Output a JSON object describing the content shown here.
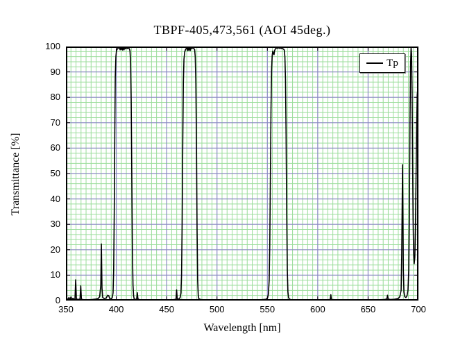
{
  "title": "TBPF-405,473,561  (AOI 45deg.)",
  "legend": {
    "label": "Tp",
    "line_color": "#000000",
    "position": "top-right"
  },
  "axes": {
    "x": {
      "label": "Wavelength [nm]",
      "min": 350,
      "max": 700,
      "major_step": 50,
      "minor_step": 5,
      "ticks": [
        350,
        400,
        450,
        500,
        550,
        600,
        650,
        700
      ]
    },
    "y": {
      "label": "Transmittance [%]",
      "min": 0,
      "max": 100,
      "major_step": 10,
      "minor_step": 2,
      "ticks": [
        100,
        90,
        80,
        70,
        60,
        50,
        40,
        30,
        20,
        10,
        0
      ]
    }
  },
  "colors": {
    "curve": "#000000",
    "grid_minor": "#9bdd9b",
    "grid_major": "#8a8ac2",
    "border": "#000000",
    "background": "#ffffff"
  },
  "chart_data": {
    "type": "line",
    "title": "TBPF-405,473,561  (AOI 45deg.)",
    "xlabel": "Wavelength [nm]",
    "ylabel": "Transmittance [%]",
    "xlim": [
      350,
      700
    ],
    "ylim": [
      0,
      100
    ],
    "grid": "major+minor",
    "legend_position": "top-right",
    "series": [
      {
        "name": "Tp",
        "color": "#000000",
        "points": [
          [
            350,
            0.4
          ],
          [
            351,
            0.8
          ],
          [
            352,
            0.4
          ],
          [
            353,
            1.2
          ],
          [
            354,
            0.4
          ],
          [
            355,
            1.4
          ],
          [
            356,
            0.5
          ],
          [
            357,
            0.9
          ],
          [
            358,
            0.5
          ],
          [
            359,
            0.6
          ],
          [
            359.7,
            8.2
          ],
          [
            360.4,
            0.7
          ],
          [
            362,
            0.4
          ],
          [
            364,
            0.6
          ],
          [
            364.7,
            5.8
          ],
          [
            365.4,
            0.5
          ],
          [
            368,
            0.3
          ],
          [
            372,
            0.3
          ],
          [
            376,
            0.4
          ],
          [
            380,
            0.6
          ],
          [
            382,
            0.8
          ],
          [
            383.5,
            1.5
          ],
          [
            384.6,
            6
          ],
          [
            385.2,
            22.3
          ],
          [
            385.8,
            5
          ],
          [
            386.5,
            1.2
          ],
          [
            388,
            0.8
          ],
          [
            390,
            1
          ],
          [
            391.5,
            2.1
          ],
          [
            392.5,
            1.9
          ],
          [
            393.5,
            0.8
          ],
          [
            395,
            0.6
          ],
          [
            396,
            1.2
          ],
          [
            396.8,
            3
          ],
          [
            397.4,
            12
          ],
          [
            398,
            35
          ],
          [
            398.5,
            65
          ],
          [
            399,
            88
          ],
          [
            399.6,
            96
          ],
          [
            400.2,
            98.3
          ],
          [
            401,
            99
          ],
          [
            402,
            99.4
          ],
          [
            403,
            99.6
          ],
          [
            403.8,
            98.7
          ],
          [
            404.4,
            100
          ],
          [
            405,
            98.8
          ],
          [
            405.7,
            99.9
          ],
          [
            406.3,
            98.6
          ],
          [
            407,
            99.9
          ],
          [
            407.7,
            98.7
          ],
          [
            408.4,
            99.8
          ],
          [
            409.2,
            99.1
          ],
          [
            410,
            99.5
          ],
          [
            411,
            99.2
          ],
          [
            412,
            99.4
          ],
          [
            413,
            99.1
          ],
          [
            413.6,
            98.3
          ],
          [
            414.2,
            94
          ],
          [
            414.8,
            78
          ],
          [
            415.4,
            50
          ],
          [
            416,
            20
          ],
          [
            416.6,
            6
          ],
          [
            417.2,
            1.8
          ],
          [
            417.8,
            0.6
          ],
          [
            419,
            0.4
          ],
          [
            420.3,
            0.6
          ],
          [
            420.9,
            3.1
          ],
          [
            421.5,
            0.7
          ],
          [
            423,
            0.3
          ],
          [
            428,
            0.25
          ],
          [
            436,
            0.25
          ],
          [
            444,
            0.25
          ],
          [
            452,
            0.3
          ],
          [
            457,
            0.35
          ],
          [
            459.3,
            0.5
          ],
          [
            459.9,
            4.2
          ],
          [
            460.5,
            0.8
          ],
          [
            462,
            0.5
          ],
          [
            463.4,
            1.2
          ],
          [
            464.2,
            3
          ],
          [
            464.8,
            10
          ],
          [
            465.4,
            30
          ],
          [
            466,
            62
          ],
          [
            466.6,
            86
          ],
          [
            467.2,
            95
          ],
          [
            468,
            98
          ],
          [
            469,
            99
          ],
          [
            470,
            99.5
          ],
          [
            470.8,
            98.4
          ],
          [
            471.4,
            99.9
          ],
          [
            472,
            98.5
          ],
          [
            472.7,
            99.8
          ],
          [
            473.4,
            98.4
          ],
          [
            474.2,
            99.7
          ],
          [
            475,
            99.2
          ],
          [
            476,
            99.5
          ],
          [
            477,
            99.2
          ],
          [
            477.8,
            98.8
          ],
          [
            478.4,
            96
          ],
          [
            479,
            86
          ],
          [
            479.6,
            62
          ],
          [
            480.2,
            28
          ],
          [
            480.8,
            8
          ],
          [
            481.4,
            2
          ],
          [
            482,
            0.7
          ],
          [
            484,
            0.35
          ],
          [
            490,
            0.25
          ],
          [
            498,
            0.25
          ],
          [
            506,
            0.25
          ],
          [
            514,
            0.25
          ],
          [
            522,
            0.25
          ],
          [
            530,
            0.25
          ],
          [
            538,
            0.3
          ],
          [
            545,
            0.35
          ],
          [
            548.5,
            0.5
          ],
          [
            550.2,
            1
          ],
          [
            551,
            2.5
          ],
          [
            551.8,
            8
          ],
          [
            552.4,
            22
          ],
          [
            553,
            48
          ],
          [
            553.6,
            75
          ],
          [
            554.2,
            91
          ],
          [
            554.8,
            96.5
          ],
          [
            555.4,
            98.2
          ],
          [
            556,
            97.2
          ],
          [
            556.6,
            96.8
          ],
          [
            557.2,
            98.4
          ],
          [
            558,
            99.1
          ],
          [
            559,
            99.4
          ],
          [
            560,
            99.3
          ],
          [
            561,
            99.5
          ],
          [
            562,
            99.3
          ],
          [
            563,
            99.4
          ],
          [
            564,
            99.2
          ],
          [
            565,
            99.2
          ],
          [
            566,
            99
          ],
          [
            566.8,
            98.6
          ],
          [
            567.4,
            96
          ],
          [
            568,
            87
          ],
          [
            568.6,
            65
          ],
          [
            569.2,
            35
          ],
          [
            569.8,
            12
          ],
          [
            570.4,
            3.5
          ],
          [
            571,
            1.2
          ],
          [
            572,
            0.5
          ],
          [
            574,
            0.3
          ],
          [
            580,
            0.25
          ],
          [
            590,
            0.25
          ],
          [
            600,
            0.25
          ],
          [
            608,
            0.3
          ],
          [
            612.4,
            0.4
          ],
          [
            613,
            2.3
          ],
          [
            613.6,
            0.4
          ],
          [
            620,
            0.25
          ],
          [
            630,
            0.25
          ],
          [
            640,
            0.25
          ],
          [
            650,
            0.3
          ],
          [
            660,
            0.3
          ],
          [
            666,
            0.4
          ],
          [
            668.6,
            0.6
          ],
          [
            669.3,
            2.1
          ],
          [
            670,
            0.6
          ],
          [
            672,
            0.4
          ],
          [
            676,
            0.5
          ],
          [
            680,
            0.8
          ],
          [
            681.5,
            1.5
          ],
          [
            682.8,
            4
          ],
          [
            683.4,
            18
          ],
          [
            683.9,
            40
          ],
          [
            684.2,
            53.5
          ],
          [
            684.6,
            35
          ],
          [
            685,
            12
          ],
          [
            685.6,
            3.5
          ],
          [
            686.4,
            1.5
          ],
          [
            687.5,
            1.2
          ],
          [
            688.6,
            1.8
          ],
          [
            689.6,
            4
          ],
          [
            690.4,
            12
          ],
          [
            691,
            35
          ],
          [
            691.6,
            70
          ],
          [
            692.2,
            93
          ],
          [
            692.7,
            99.3
          ],
          [
            693.2,
            97
          ],
          [
            693.7,
            82
          ],
          [
            694.2,
            55
          ],
          [
            694.7,
            32
          ],
          [
            695.2,
            19
          ],
          [
            695.8,
            14.5
          ],
          [
            696.4,
            17
          ],
          [
            697,
            28
          ],
          [
            697.6,
            48
          ],
          [
            698.2,
            68
          ],
          [
            698.8,
            81
          ],
          [
            699.3,
            83
          ],
          [
            699.7,
            79
          ],
          [
            700,
            76
          ]
        ]
      }
    ]
  }
}
